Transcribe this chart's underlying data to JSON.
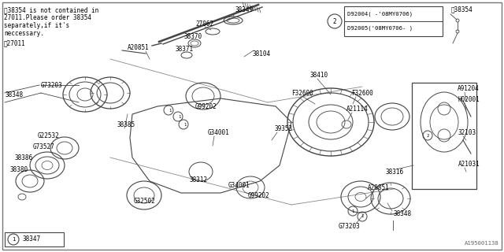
{
  "bg_color": "#ffffff",
  "border_color": "#777777",
  "line_color": "#444444",
  "text_color": "#000000",
  "watermark": "A195001138",
  "note_text": "‸38354 is not contained in\n27011.Please order 38354\n separately,if it's\n neccessary.",
  "legend_lines": [
    "D92004( -'08MY0706)",
    "D92005('08MY0706- )"
  ],
  "fs": 6.5
}
